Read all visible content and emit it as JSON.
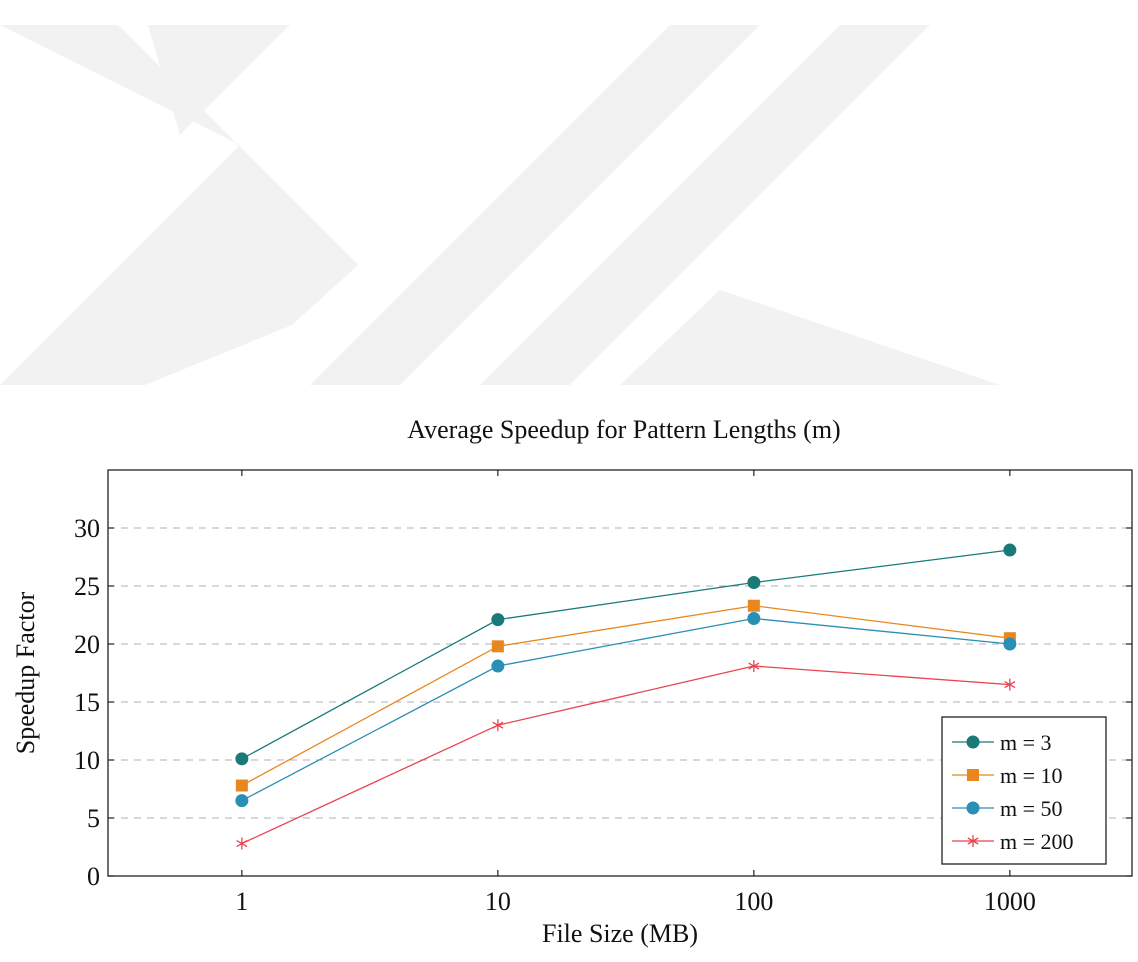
{
  "chart_data": {
    "type": "line",
    "title": "Average Speedup for Pattern Lengths (m)",
    "xlabel": "File Size (MB)",
    "ylabel": "Speedup Factor",
    "x_scale": "log",
    "x": [
      1,
      10,
      100,
      1000
    ],
    "x_tick_labels": [
      "1",
      "10",
      "100",
      "1000"
    ],
    "xlim": [
      0.3,
      3000
    ],
    "ylim": [
      0,
      35
    ],
    "y_ticks": [
      0,
      5,
      10,
      15,
      20,
      25,
      30
    ],
    "y_tick_labels": [
      "0",
      "5",
      "10",
      "15",
      "20",
      "25",
      "30"
    ],
    "grid": "horizontal dashed",
    "legend_position": "lower-right",
    "series": [
      {
        "name": "m = 3",
        "values": [
          10.1,
          22.1,
          25.3,
          28.1
        ],
        "color": "#1a7a7a",
        "marker": "circle"
      },
      {
        "name": "m = 10",
        "values": [
          7.8,
          19.8,
          23.3,
          20.5
        ],
        "color": "#e8871e",
        "marker": "square"
      },
      {
        "name": "m = 50",
        "values": [
          6.5,
          18.1,
          22.2,
          20.0
        ],
        "color": "#2a8fb5",
        "marker": "circle"
      },
      {
        "name": "m = 200",
        "values": [
          2.8,
          13.0,
          18.1,
          16.5
        ],
        "color": "#e8434f",
        "marker": "star"
      }
    ]
  },
  "watermark": {
    "color": "#f2f2f2"
  }
}
